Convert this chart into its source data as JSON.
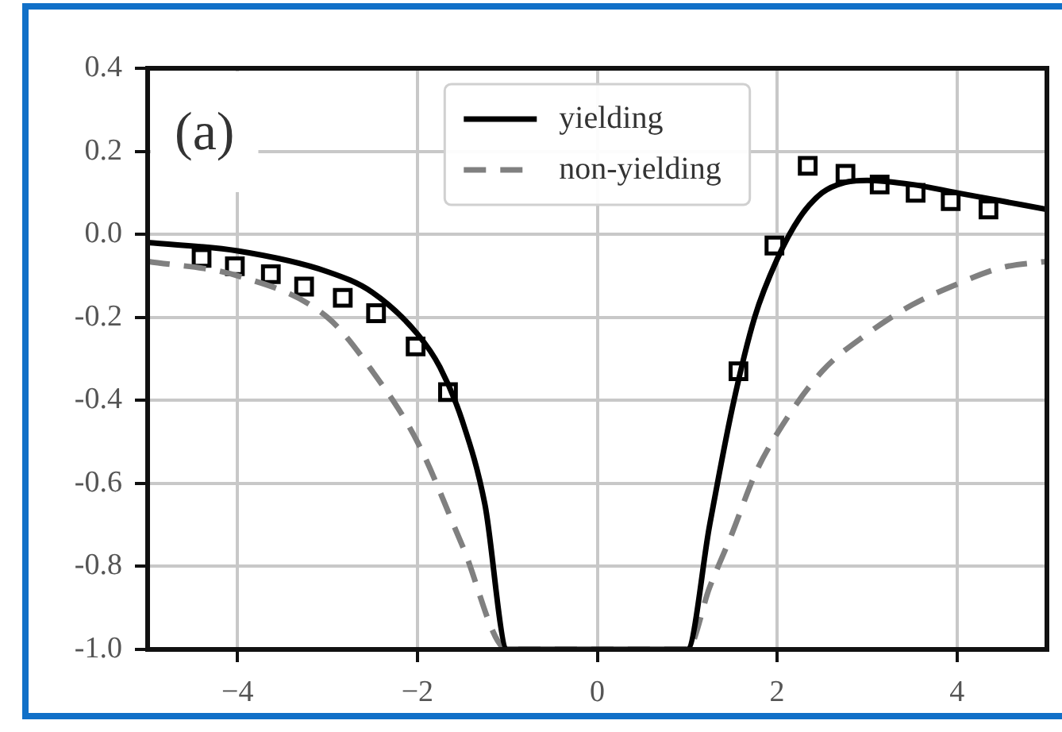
{
  "chart_data": {
    "type": "line",
    "annotations": [
      "(a)"
    ],
    "xlim": [
      -5,
      5
    ],
    "ylim": [
      -1.0,
      0.4
    ],
    "xticks": [
      {
        "value": -4,
        "label": "−4"
      },
      {
        "value": -2,
        "label": "−2"
      },
      0,
      2,
      4
    ],
    "yticks": [
      0.4,
      0.2,
      {
        "value": 0,
        "label": "0.0"
      },
      -0.2,
      -0.4,
      -0.6,
      -0.8,
      {
        "value": -1,
        "label": "-1.0"
      }
    ],
    "grid": true,
    "legend": "top",
    "series": [
      {
        "name": "yielding",
        "color": "#000000",
        "line_style": "solid",
        "marker": "none",
        "x": [
          -5,
          -4,
          -3,
          -2.5,
          -2,
          -1.75,
          -1.5,
          -1.25,
          -1,
          1,
          1.25,
          1.5,
          1.75,
          2,
          2.25,
          2.5,
          2.75,
          3,
          3.5,
          4,
          4.5,
          5
        ],
        "values": [
          -0.02,
          -0.04,
          -0.09,
          -0.14,
          -0.24,
          -0.32,
          -0.45,
          -0.65,
          -1,
          -1,
          -0.7,
          -0.42,
          -0.2,
          -0.06,
          0.04,
          0.1,
          0.125,
          0.13,
          0.12,
          0.1,
          0.08,
          0.06
        ]
      },
      {
        "name": "non-yielding",
        "color": "#808080",
        "line_style": "dashed",
        "marker": "none",
        "x": [
          -5,
          -4,
          -3,
          -2.5,
          -2,
          -1.5,
          -1,
          1,
          1.25,
          1.5,
          1.75,
          2,
          2.5,
          3,
          3.5,
          4,
          4.5,
          5
        ],
        "values": [
          -0.065,
          -0.1,
          -0.2,
          -0.33,
          -0.5,
          -0.75,
          -1,
          -1,
          -0.85,
          -0.72,
          -0.58,
          -0.48,
          -0.33,
          -0.24,
          -0.17,
          -0.12,
          -0.08,
          -0.065
        ]
      },
      {
        "type": "scatter",
        "color": "#000000",
        "marker": "square",
        "x": [
          -4.4,
          -4.03,
          -3.63,
          -3.26,
          -2.83,
          -2.46,
          -2.02,
          -1.66,
          1.57,
          1.97,
          2.34,
          2.76,
          3.14,
          3.54,
          3.93,
          4.35
        ],
        "values": [
          -0.057,
          -0.077,
          -0.096,
          -0.126,
          -0.153,
          -0.19,
          -0.27,
          -0.38,
          -0.33,
          -0.027,
          0.165,
          0.146,
          0.12,
          0.1,
          0.08,
          0.06
        ]
      }
    ]
  }
}
